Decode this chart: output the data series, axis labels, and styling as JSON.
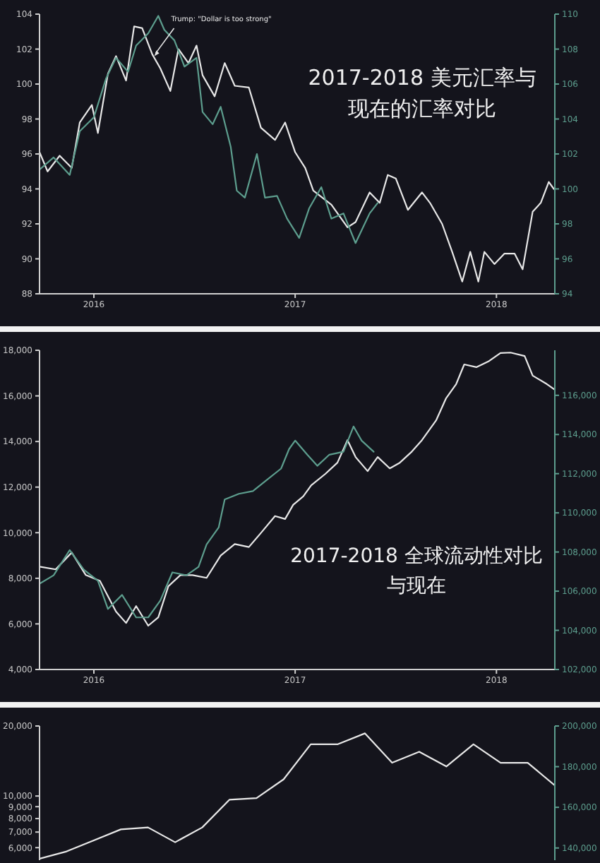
{
  "chart_data": [
    {
      "type": "line",
      "title": "2017-2018 美元汇率与现在的汇率对比",
      "xlim": [
        2015.73,
        2018.29
      ],
      "xticks": [
        2016,
        2017,
        2018
      ],
      "ylim": [
        88,
        104
      ],
      "yticks": [
        88,
        90,
        92,
        94,
        96,
        98,
        100,
        102,
        104
      ],
      "y2lim": [
        94,
        110
      ],
      "y2ticks": [
        94,
        96,
        98,
        100,
        102,
        104,
        106,
        108,
        110
      ],
      "grid": false,
      "marker": "none",
      "line_style": "solid",
      "annotations": [
        {
          "text": "Trump: \"Dollar is too strong\"",
          "x": 2016.3,
          "y": 101.6
        }
      ],
      "series": [
        {
          "color": "#e8e8e8",
          "x": [
            2015.73,
            2015.77,
            2015.83,
            2015.89,
            2015.93,
            2015.99,
            2016.02,
            2016.07,
            2016.11,
            2016.16,
            2016.2,
            2016.24,
            2016.29,
            2016.33,
            2016.38,
            2016.42,
            2016.47,
            2016.51,
            2016.54,
            2016.6,
            2016.65,
            2016.7,
            2016.77,
            2016.83,
            2016.9,
            2016.95,
            2017.0,
            2017.05,
            2017.09,
            2017.18,
            2017.26,
            2017.3,
            2017.37,
            2017.42,
            2017.46,
            2017.5,
            2017.56,
            2017.63,
            2017.67,
            2017.73,
            2017.78,
            2017.83,
            2017.87,
            2017.91,
            2017.94,
            2017.99,
            2018.04,
            2018.09,
            2018.13,
            2018.18,
            2018.22,
            2018.26,
            2018.285
          ],
          "values": [
            96.1,
            95.0,
            95.9,
            95.2,
            97.8,
            98.8,
            97.2,
            100.6,
            101.6,
            100.2,
            103.3,
            103.2,
            101.7,
            100.9,
            99.6,
            102.0,
            101.2,
            102.2,
            100.5,
            99.3,
            101.2,
            99.9,
            99.8,
            97.5,
            96.8,
            97.8,
            96.1,
            95.2,
            93.9,
            93.1,
            91.8,
            92.1,
            93.8,
            93.2,
            94.8,
            94.6,
            92.8,
            93.8,
            93.2,
            92.0,
            90.4,
            88.7,
            90.4,
            88.7,
            90.4,
            89.7,
            90.3,
            90.3,
            89.4,
            92.7,
            93.2,
            94.4,
            94.0
          ]
        },
        {
          "color": "#5d9e8e",
          "axis": "y2",
          "x": [
            2015.73,
            2015.8,
            2015.88,
            2015.93,
            2016.0,
            2016.06,
            2016.11,
            2016.17,
            2016.21,
            2016.27,
            2016.32,
            2016.35,
            2016.4,
            2016.45,
            2016.51,
            2016.54,
            2016.59,
            2016.63,
            2016.68,
            2016.71,
            2016.75,
            2016.81,
            2016.85,
            2016.91,
            2016.96,
            2017.02,
            2017.07,
            2017.13,
            2017.18,
            2017.24,
            2017.3,
            2017.37,
            2017.41
          ],
          "values": [
            101.1,
            101.8,
            100.8,
            103.3,
            104.1,
            106.3,
            107.5,
            106.7,
            108.2,
            108.9,
            109.9,
            109.1,
            108.5,
            107.0,
            107.5,
            104.4,
            103.7,
            104.7,
            102.4,
            99.9,
            99.5,
            102.0,
            99.5,
            99.6,
            98.3,
            97.2,
            98.9,
            100.1,
            98.3,
            98.6,
            96.9,
            98.6,
            99.2
          ]
        }
      ]
    },
    {
      "type": "line",
      "title": "2017-2018 全球流动性对比与现在",
      "xlim": [
        2015.73,
        2018.29
      ],
      "xticks": [
        2016,
        2017,
        2018
      ],
      "ylim": [
        4000,
        18000
      ],
      "yticks": [
        {
          "value": 4000,
          "label": "4,000"
        },
        {
          "value": 6000,
          "label": "6,000"
        },
        {
          "value": 8000,
          "label": "8,000"
        },
        {
          "value": 10000,
          "label": "10,000"
        },
        {
          "value": 12000,
          "label": "12,000"
        },
        {
          "value": 14000,
          "label": "14,000"
        },
        {
          "value": 16000,
          "label": "16,000"
        },
        {
          "value": 18000,
          "label": "18,000"
        }
      ],
      "y2lim": [
        102000,
        118300
      ],
      "y2ticks": [
        {
          "value": 102000,
          "label": "102,000"
        },
        {
          "value": 104000,
          "label": "104,000"
        },
        {
          "value": 106000,
          "label": "106,000"
        },
        {
          "value": 108000,
          "label": "108,000"
        },
        {
          "value": 110000,
          "label": "110,000"
        },
        {
          "value": 112000,
          "label": "112,000"
        },
        {
          "value": 114000,
          "label": "114,000"
        },
        {
          "value": 116000,
          "label": "116,000"
        }
      ],
      "grid": false,
      "marker": "none",
      "line_style": "solid",
      "series": [
        {
          "color": "#e8e8e8",
          "x": [
            2015.73,
            2015.81,
            2015.89,
            2015.96,
            2016.03,
            2016.11,
            2016.16,
            2016.21,
            2016.27,
            2016.32,
            2016.37,
            2016.43,
            2016.49,
            2016.56,
            2016.63,
            2016.7,
            2016.77,
            2016.83,
            2016.9,
            2016.95,
            2016.99,
            2017.04,
            2017.08,
            2017.15,
            2017.21,
            2017.26,
            2017.3,
            2017.36,
            2017.41,
            2017.47,
            2017.52,
            2017.58,
            2017.63,
            2017.7,
            2017.75,
            2017.8,
            2017.84,
            2017.9,
            2017.96,
            2018.02,
            2018.07,
            2018.14,
            2018.18,
            2018.25,
            2018.29
          ],
          "values": [
            8510,
            8390,
            9130,
            8140,
            7890,
            6540,
            6040,
            6780,
            5920,
            6290,
            7650,
            8140,
            8140,
            8020,
            9000,
            9500,
            9370,
            9990,
            10730,
            10600,
            11220,
            11590,
            12080,
            12580,
            13070,
            14060,
            13320,
            12700,
            13320,
            12820,
            13070,
            13560,
            14060,
            14920,
            15900,
            16520,
            17380,
            17260,
            17510,
            17880,
            17900,
            17750,
            16890,
            16520,
            16270
          ]
        },
        {
          "color": "#5d9e8e",
          "axis": "y2",
          "x": [
            2015.73,
            2015.8,
            2015.88,
            2015.95,
            2016.02,
            2016.07,
            2016.14,
            2016.21,
            2016.27,
            2016.33,
            2016.39,
            2016.46,
            2016.52,
            2016.56,
            2016.62,
            2016.65,
            2016.72,
            2016.79,
            2016.86,
            2016.93,
            2016.97,
            2017.0,
            2017.06,
            2017.11,
            2017.17,
            2017.24,
            2017.29,
            2017.33,
            2017.39
          ],
          "values": [
            106380,
            106810,
            108100,
            107100,
            106530,
            105090,
            105810,
            104660,
            104660,
            105520,
            106960,
            106810,
            107240,
            108390,
            109250,
            110680,
            110970,
            111110,
            111690,
            112260,
            113260,
            113690,
            112970,
            112400,
            112970,
            113120,
            114410,
            113690,
            113120
          ]
        }
      ]
    },
    {
      "type": "line",
      "categories": [
        null,
        null,
        null,
        null,
        null,
        null,
        null,
        null,
        null,
        null,
        null,
        null,
        null,
        null,
        null,
        null,
        null,
        null,
        null,
        null
      ],
      "log": "y",
      "tick_labels": "y",
      "ylim": [
        5300,
        20000
      ],
      "yticks": [
        {
          "value": 6000,
          "label": "6,000"
        },
        {
          "value": 7000,
          "label": "7,000"
        },
        {
          "value": 8000,
          "label": "8,000"
        },
        {
          "value": 9000,
          "label": "9,000"
        },
        {
          "value": 10000,
          "label": "10,000"
        },
        {
          "value": 20000,
          "label": "20,000"
        }
      ],
      "y2lim": [
        134000,
        200000
      ],
      "y2ticks": [
        {
          "value": 140000,
          "label": "140,000"
        },
        {
          "value": 160000,
          "label": "160,000"
        },
        {
          "value": 180000,
          "label": "180,000"
        },
        {
          "value": 200000,
          "label": "200,000"
        }
      ],
      "grid": false,
      "marker": "none",
      "line_style": "solid",
      "series": [
        {
          "color": "#e8e8e8",
          "values": [
            5380,
            5780,
            6450,
            7190,
            7330,
            6330,
            7330,
            9640,
            9800,
            11800,
            16700,
            16700,
            18600,
            13900,
            15500,
            13400,
            16700,
            13900,
            13900,
            11100
          ]
        }
      ]
    }
  ]
}
